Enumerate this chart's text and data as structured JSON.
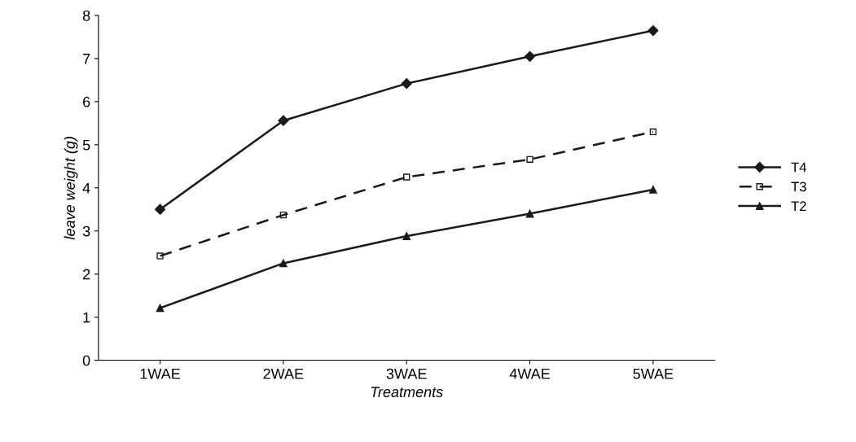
{
  "chart_data": {
    "type": "line",
    "xlabel": "Treatments",
    "ylabel": "leave weight (g)",
    "categories": [
      "1WAE",
      "2WAE",
      "3WAE",
      "4WAE",
      "5WAE"
    ],
    "series": [
      {
        "name": "T4",
        "color": "#1a1a1a",
        "marker": "diamond",
        "line_style": "solid",
        "values": [
          3.5,
          5.56,
          6.42,
          7.05,
          7.65
        ]
      },
      {
        "name": "T3",
        "color": "#1a1a1a",
        "marker": "square",
        "line_style": "dashed",
        "values": [
          2.42,
          3.37,
          4.25,
          4.66,
          5.3
        ]
      },
      {
        "name": "T2",
        "color": "#1a1a1a",
        "marker": "triangle",
        "line_style": "solid",
        "values": [
          1.21,
          2.25,
          2.88,
          3.4,
          3.96
        ]
      }
    ],
    "ylim": [
      0,
      8
    ],
    "yticks": [
      0,
      1,
      2,
      3,
      4,
      5,
      6,
      7,
      8
    ],
    "grid": false,
    "legend": "right"
  }
}
